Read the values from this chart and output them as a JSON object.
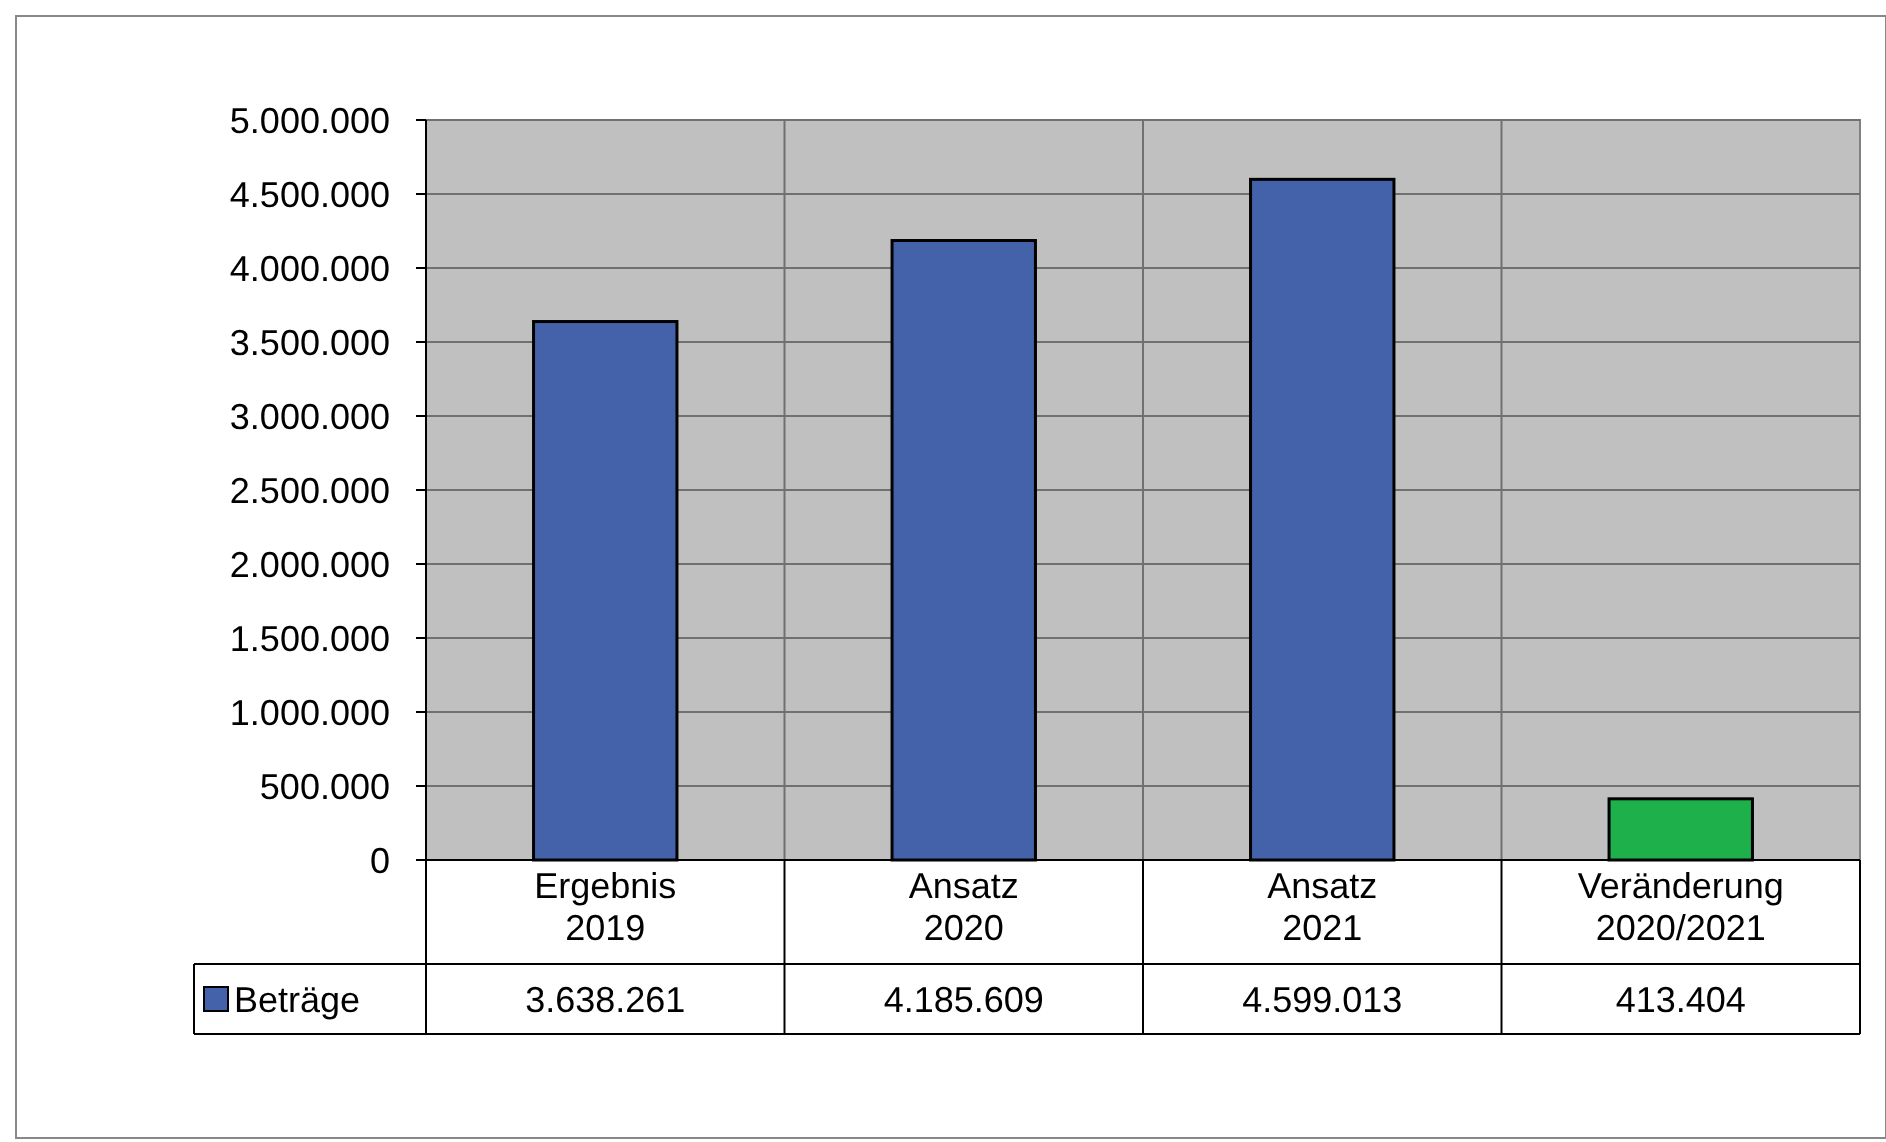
{
  "chart_data": {
    "type": "bar",
    "categories": [
      "Ergebnis 2019",
      "Ansatz 2020",
      "Ansatz 2021",
      "Veränderung 2020/2021"
    ],
    "series": [
      {
        "name": "Beträge",
        "color": "#4462aa",
        "colors": [
          "#4462aa",
          "#4462aa",
          "#4462aa",
          "#1db04b"
        ],
        "values": [
          3638261,
          4185609,
          4599013,
          413404
        ],
        "value_labels": [
          "3.638.261",
          "4.185.609",
          "4.599.013",
          "413.404"
        ]
      }
    ],
    "ylim": [
      0,
      5000000
    ],
    "yticks": [
      {
        "value": 0,
        "label": "0"
      },
      {
        "value": 500000,
        "label": "500.000"
      },
      {
        "value": 1000000,
        "label": "1.000.000"
      },
      {
        "value": 1500000,
        "label": "1.500.000"
      },
      {
        "value": 2000000,
        "label": "2.000.000"
      },
      {
        "value": 2500000,
        "label": "2.500.000"
      },
      {
        "value": 3000000,
        "label": "3.000.000"
      },
      {
        "value": 3500000,
        "label": "3.500.000"
      },
      {
        "value": 4000000,
        "label": "4.000.000"
      },
      {
        "value": 4500000,
        "label": "4.500.000"
      },
      {
        "value": 5000000,
        "label": "5.000.000"
      }
    ],
    "grid": true,
    "legend": "bottom left"
  }
}
